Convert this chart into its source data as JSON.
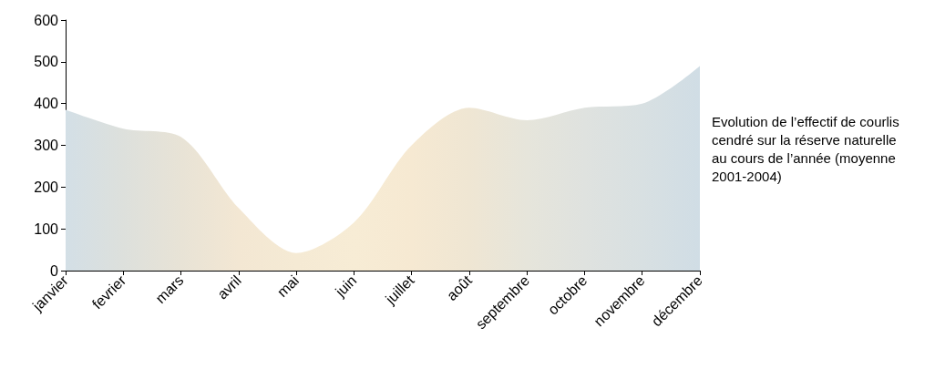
{
  "chart_data": {
    "type": "area",
    "title": "Evolution de l’effectif de courlis cendré sur la réserve naturelle au cours de l’année (moyenne 2001-2004)",
    "categories": [
      "janvier",
      "fevrier",
      "mars",
      "avril",
      "mai",
      "juin",
      "juillet",
      "août",
      "septembre",
      "octobre",
      "novembre",
      "décembre"
    ],
    "values": [
      385,
      340,
      320,
      150,
      42,
      115,
      300,
      390,
      360,
      390,
      400,
      490
    ],
    "colors": [
      "#d3dfe6",
      "#dde0dc",
      "#e8e3d6",
      "#f3e7d3",
      "#f5ead4",
      "#f7ecd5",
      "#f6e9d2",
      "#efe6d3",
      "#e6e5db",
      "#dfe2df",
      "#d8e0e2",
      "#d0dde5"
    ],
    "ylim": [
      0,
      600
    ],
    "yticks": [
      0,
      100,
      200,
      300,
      400,
      500,
      600
    ],
    "grid": false,
    "marker": "none"
  }
}
